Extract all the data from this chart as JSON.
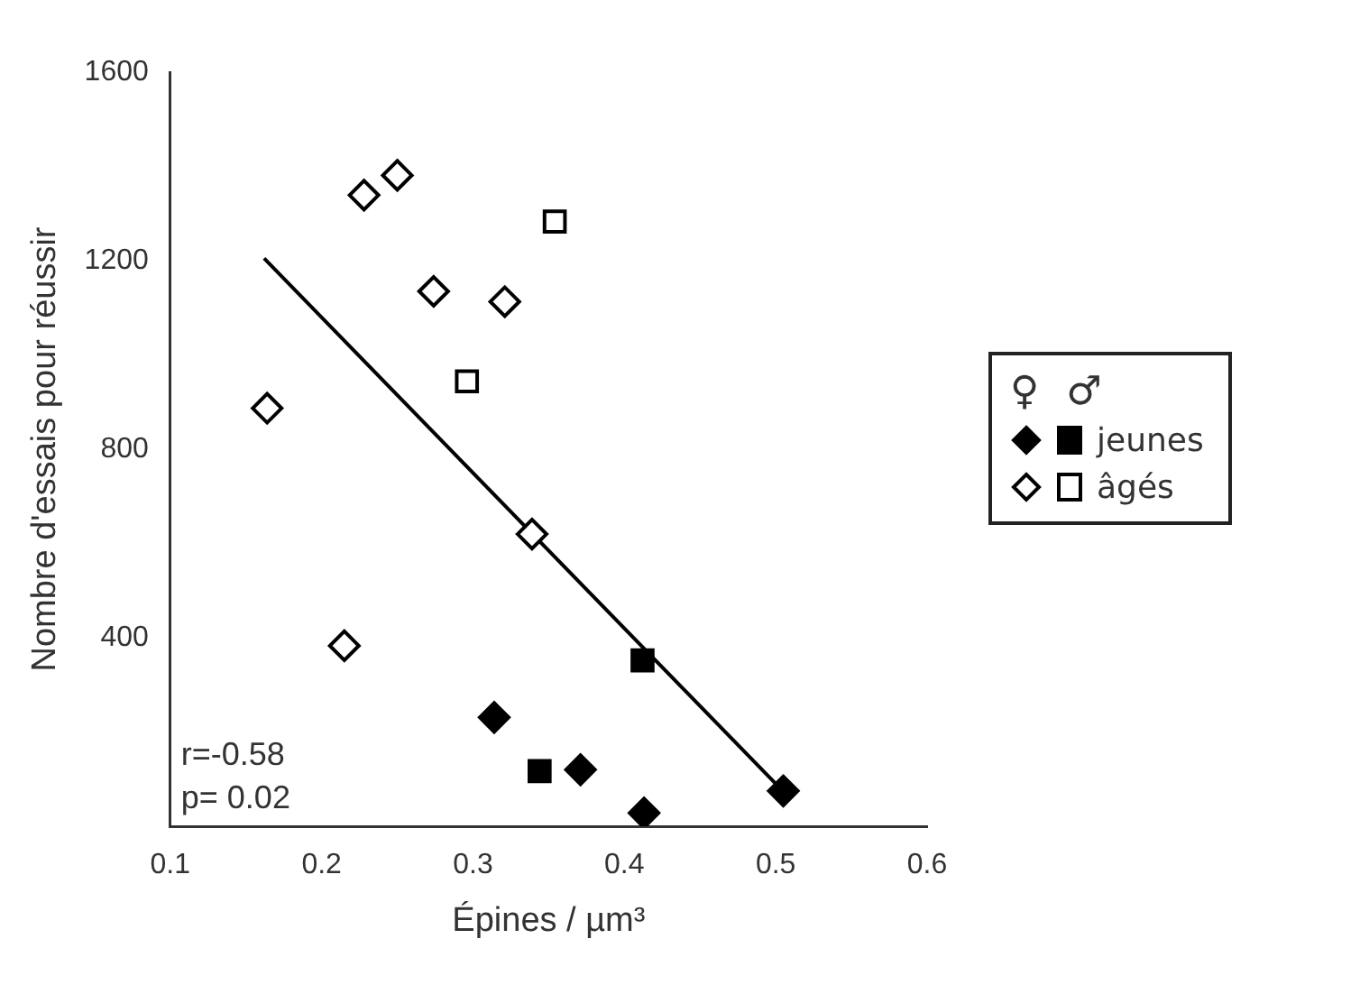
{
  "chart_data": {
    "type": "scatter",
    "xlabel": "Épines / µm³",
    "ylabel": "Nombre d'essais pour réussir",
    "legend_title": "♀ ♂",
    "legend": "right",
    "grid": false,
    "xlim": [
      0.1,
      0.6
    ],
    "xticks": [
      0.1,
      0.2,
      0.3,
      0.4,
      0.5,
      0.6
    ],
    "ylim": [
      0,
      1600
    ],
    "yticks": [
      400,
      800,
      1200,
      1600
    ],
    "annotations": [
      "r=-0.58",
      "p= 0.02"
    ],
    "series": [
      {
        "color": "#000000",
        "marker": "diamond",
        "x": [
          0.314,
          0.371,
          0.413,
          0.505
        ],
        "values": [
          231,
          120,
          28,
          75
        ]
      },
      {
        "name": "jeunes",
        "color": "#000000",
        "marker": "square",
        "x": [
          0.344,
          0.412
        ],
        "values": [
          117,
          352
        ]
      },
      {
        "color": "#ffffff",
        "marker": "diamond",
        "x": [
          0.164,
          0.215,
          0.228,
          0.25,
          0.274,
          0.321,
          0.339
        ],
        "values": [
          887,
          383,
          1339,
          1381,
          1135,
          1113,
          620
        ]
      },
      {
        "name": "âgés",
        "color": "#ffffff",
        "marker": "square",
        "x": [
          0.296,
          0.354
        ],
        "values": [
          944,
          1283
        ]
      },
      {
        "type": "line",
        "color": "#000000",
        "marker": "none",
        "x": [
          0.162,
          0.5
        ],
        "values": [
          1205,
          90
        ]
      }
    ]
  }
}
